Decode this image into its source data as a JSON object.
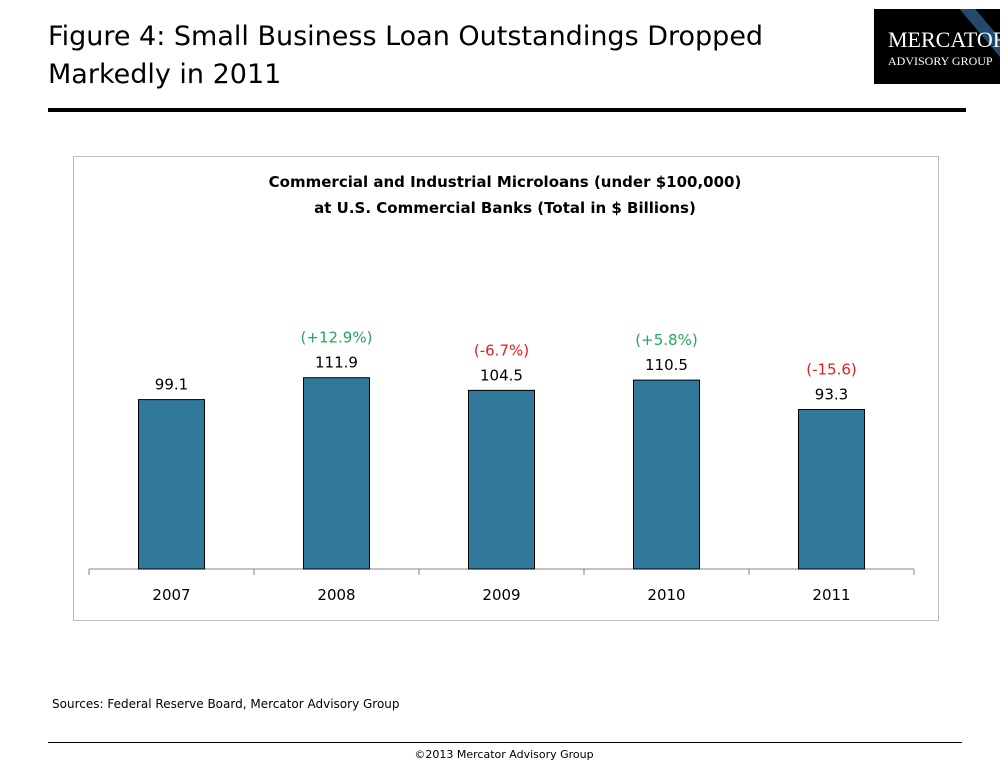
{
  "title": "Figure 4: Small Business Loan Outstandings Dropped Markedly in 2011",
  "logo": {
    "line1": "Mercator",
    "line2": "Advisory Group"
  },
  "chart_data": {
    "type": "bar",
    "title": "Commercial and Industrial Microloans (under $100,000)",
    "subtitle": "at U.S. Commercial Banks (Total in $ Billions)",
    "categories": [
      "2007",
      "2008",
      "2009",
      "2010",
      "2011"
    ],
    "values": [
      99.1,
      111.9,
      104.5,
      110.5,
      93.3
    ],
    "value_labels": [
      "99.1",
      "111.9",
      "104.5",
      "110.5",
      "93.3"
    ],
    "annotations": [
      "",
      "(+12.9%)",
      "(-6.7%)",
      "(+5.8%)",
      "(-15.6)"
    ],
    "annotation_colors": [
      "#000000",
      "#22a95a",
      "#e0201c",
      "#22a95a",
      "#e0201c"
    ],
    "bar_color": "#31799a",
    "ylim": [
      0,
      241
    ],
    "xlabel": "",
    "ylabel": "",
    "grid": false
  },
  "sources": "Sources: Federal Reserve Board, Mercator Advisory Group",
  "copyright": "©2013 Mercator Advisory Group"
}
